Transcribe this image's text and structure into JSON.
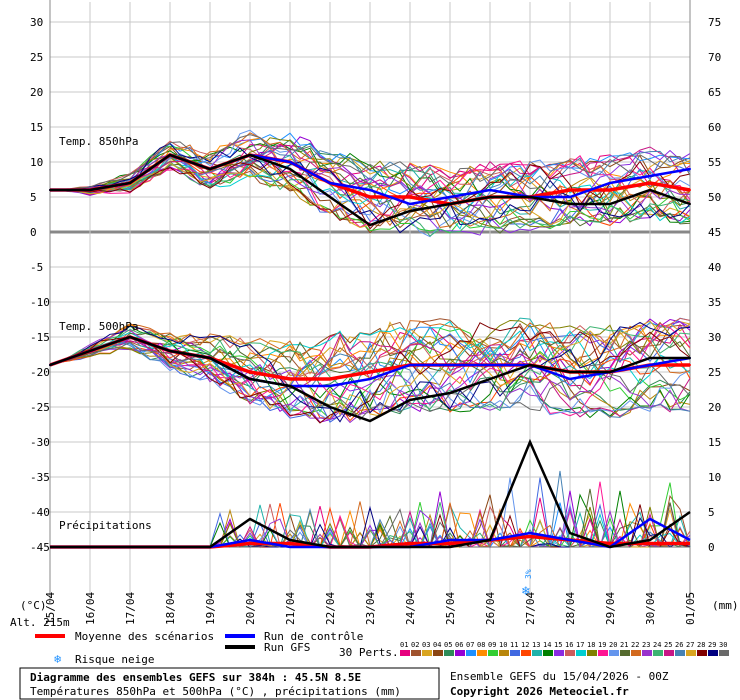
{
  "chart_data": {
    "type": "line",
    "title": "Diagramme des ensembles GEFS sur 384h : 45.5N 8.5E",
    "subtitle": "Températures 850hPa et 500hPa (°C) , précipitations (mm)",
    "left_axis": {
      "unit": "(°C)",
      "ticks": [
        30,
        25,
        20,
        15,
        10,
        5,
        0,
        -5,
        -10,
        -15,
        -20,
        -25,
        -30,
        -35,
        -40,
        -45
      ]
    },
    "right_axis": {
      "unit": "(mm)",
      "ticks": [
        75,
        70,
        65,
        60,
        55,
        50,
        45,
        40,
        35,
        30,
        25,
        20,
        15,
        10,
        5,
        0
      ]
    },
    "x_labels": [
      "15/04",
      "16/04",
      "17/04",
      "18/04",
      "19/04",
      "20/04",
      "21/04",
      "22/04",
      "23/04",
      "24/04",
      "25/04",
      "26/04",
      "27/04",
      "28/04",
      "29/04",
      "30/04",
      "01/05"
    ],
    "altitude_label": "Alt. 215m",
    "panel_labels": {
      "t850": "Temp. 850hPa",
      "t500": "Temp. 500hPa",
      "precip": "Précipitations"
    },
    "snow_risk_marker": {
      "date": "27/04",
      "value": "3%"
    },
    "series": [
      {
        "name": "Moyenne des scénarios",
        "t850": [
          6,
          6,
          7,
          11,
          9,
          11,
          10,
          7,
          5,
          5,
          4,
          5,
          5,
          6,
          6,
          7,
          6
        ],
        "t500": [
          -19,
          -17,
          -15,
          -17,
          -18,
          -20,
          -21,
          -21,
          -20,
          -19,
          -19,
          -19,
          -19,
          -20,
          -20,
          -19,
          -19
        ],
        "precip": [
          0,
          0,
          0,
          0,
          0,
          0.5,
          0.5,
          0,
          0,
          0.5,
          0.5,
          1,
          1.5,
          1,
          0.5,
          0.5,
          0.5
        ]
      },
      {
        "name": "Run de contrôle",
        "t850": [
          6,
          6,
          7,
          11,
          9,
          11,
          10,
          7,
          6,
          4,
          5,
          6,
          5,
          5,
          7,
          8,
          9
        ],
        "t500": [
          -19,
          -17,
          -15,
          -17,
          -18,
          -21,
          -22,
          -22,
          -21,
          -19,
          -19,
          -19,
          -19,
          -21,
          -20,
          -19,
          -18
        ],
        "precip": [
          0,
          0,
          0,
          0,
          0,
          1,
          0,
          0,
          0,
          0,
          1,
          1,
          2,
          1,
          0,
          4,
          1
        ]
      },
      {
        "name": "Run GFS",
        "t850": [
          6,
          6,
          7,
          11,
          9,
          11,
          9,
          5,
          1,
          3,
          4,
          5,
          5,
          4,
          4,
          6,
          4
        ],
        "t500": [
          -19,
          -17,
          -15,
          -17,
          -18,
          -21,
          -22,
          -25,
          -27,
          -24,
          -23,
          -21,
          -19,
          -20,
          -20,
          -18,
          -18
        ],
        "precip": [
          0,
          0,
          0,
          0,
          0,
          4,
          1,
          0,
          0,
          0,
          0,
          1,
          15,
          2,
          0,
          1,
          5
        ]
      }
    ]
  },
  "legend": {
    "mean_label": "Moyenne des scénarios",
    "control_label": "Run de contrôle",
    "gfs_label": "Run GFS",
    "snow_label": "Risque neige",
    "perts_label": "30 Perts.",
    "pert_numbers": [
      "01",
      "02",
      "03",
      "04",
      "05",
      "06",
      "07",
      "08",
      "09",
      "10",
      "11",
      "12",
      "13",
      "14",
      "15",
      "16",
      "17",
      "18",
      "19",
      "20",
      "21",
      "22",
      "23",
      "24",
      "25",
      "26",
      "27",
      "28",
      "29",
      "30"
    ],
    "pert_colors": [
      "#e6007e",
      "#a0522d",
      "#daa520",
      "#8b4513",
      "#2e8b57",
      "#9400d3",
      "#1e90ff",
      "#ff8c00",
      "#32cd32",
      "#b8860b",
      "#4169e1",
      "#ff4500",
      "#20b2aa",
      "#008000",
      "#8a2be2",
      "#cd5c5c",
      "#00ced1",
      "#808000",
      "#ff1493",
      "#6495ed",
      "#556b2f",
      "#d2691e",
      "#9932cc",
      "#3cb371",
      "#c71585",
      "#4682b4",
      "#daa520",
      "#800000",
      "#000080",
      "#696969"
    ],
    "mean_color": "#ff0000",
    "control_color": "#0000ff",
    "gfs_color": "#000000"
  },
  "footer": {
    "run_info": "Ensemble GEFS du 15/04/2026 - 00Z",
    "copyright": "Copyright 2026 Meteociel.fr"
  }
}
